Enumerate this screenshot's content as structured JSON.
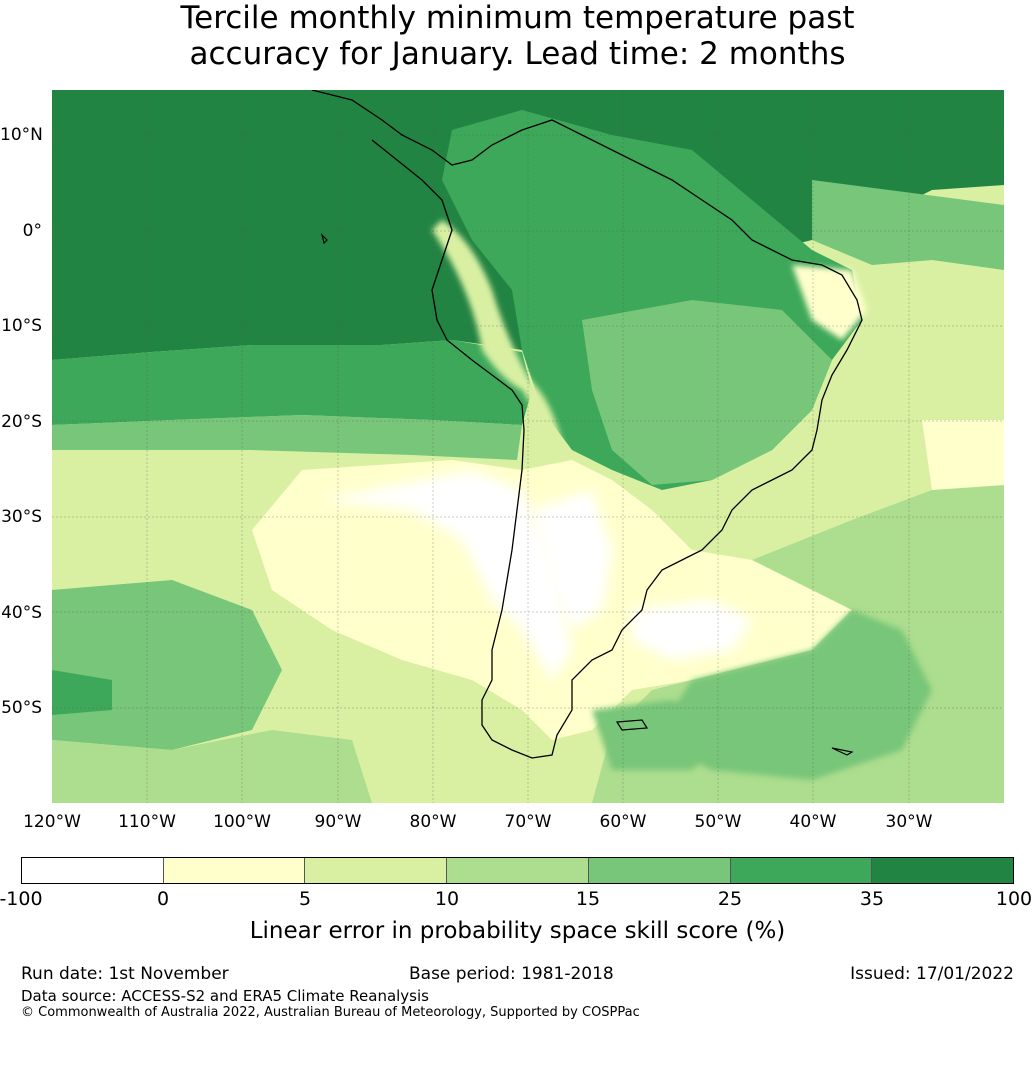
{
  "title": {
    "line1": "Tercile monthly minimum temperature past",
    "line2": "accuracy for January. Lead time: 2 months"
  },
  "map": {
    "latitude_labels": [
      "10°N",
      "0°",
      "10°S",
      "20°S",
      "30°S",
      "40°S",
      "50°S"
    ],
    "longitude_labels": [
      "120°W",
      "110°W",
      "100°W",
      "90°W",
      "80°W",
      "70°W",
      "60°W",
      "50°W",
      "40°W",
      "30°W"
    ],
    "colors": {
      "ocean_dark": "#228443",
      "mid_green": "#3da85a",
      "light_green": "#78c679",
      "pale_green": "#addd8e",
      "yellow_green": "#d9f0a3",
      "cream": "#ffffcc",
      "white": "#ffffff",
      "coast": "#000000"
    }
  },
  "colorbar": {
    "tick_labels": [
      "-100",
      "0",
      "5",
      "10",
      "15",
      "25",
      "35",
      "100"
    ],
    "segment_colors": [
      "#ffffff",
      "#ffffcc",
      "#d9f0a3",
      "#addd8e",
      "#78c679",
      "#3da85a",
      "#228443"
    ],
    "label": "Linear error in probability space skill score (%)"
  },
  "footer": {
    "run_date": "Run date: 1st November",
    "base_period": "Base period: 1981-2018",
    "issued": "Issued: 17/01/2022",
    "data_source": "Data source: ACCESS-S2 and ERA5 Climate Reanalysis",
    "copyright": "© Commonwealth of Australia 2022, Australian Bureau of Meteorology, Supported by COSPPac"
  }
}
